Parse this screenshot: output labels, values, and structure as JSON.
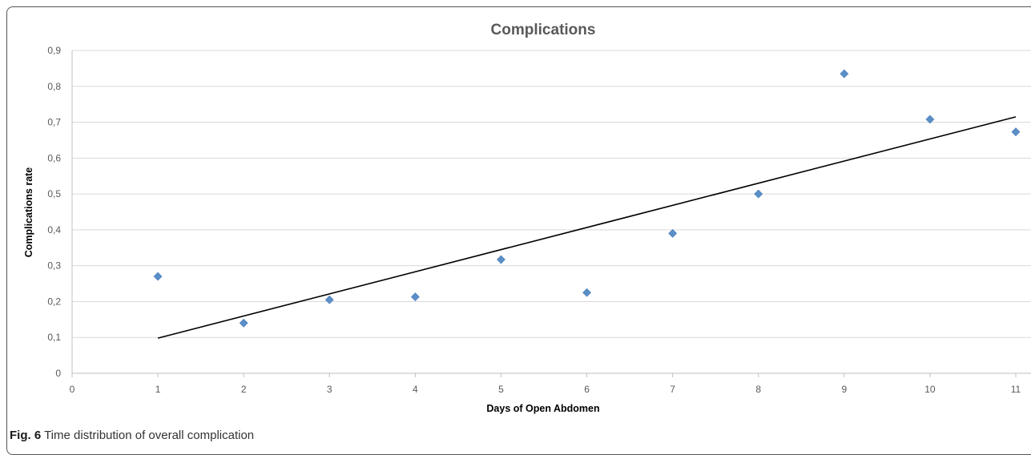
{
  "chart_data": {
    "type": "scatter",
    "title": "Complications",
    "xlabel": "Days of Open Abdomen",
    "ylabel": "Complications rate",
    "xlim": [
      0,
      11
    ],
    "ylim": [
      0,
      0.9
    ],
    "x_ticks": [
      "0",
      "1",
      "2",
      "3",
      "4",
      "5",
      "6",
      "7",
      "8",
      "9",
      "10",
      "11"
    ],
    "y_ticks": [
      "0",
      "0,1",
      "0,2",
      "0,3",
      "0,4",
      "0,5",
      "0,6",
      "0,7",
      "0,8",
      "0,9"
    ],
    "grid": "horizontal",
    "series": [
      {
        "x": [
          1,
          2,
          3,
          4,
          5,
          6,
          7,
          8,
          9,
          10,
          11
        ],
        "y": [
          0.27,
          0.14,
          0.205,
          0.213,
          0.317,
          0.225,
          0.39,
          0.5,
          0.835,
          0.708,
          0.673
        ],
        "color": "#5b8fc7"
      }
    ],
    "trendline": {
      "type": "linear",
      "x": [
        1,
        11
      ],
      "y": [
        0.098,
        0.715
      ],
      "color": "#000000"
    }
  },
  "caption": {
    "label": "Fig. 6",
    "text": "Time distribution of overall complication"
  }
}
